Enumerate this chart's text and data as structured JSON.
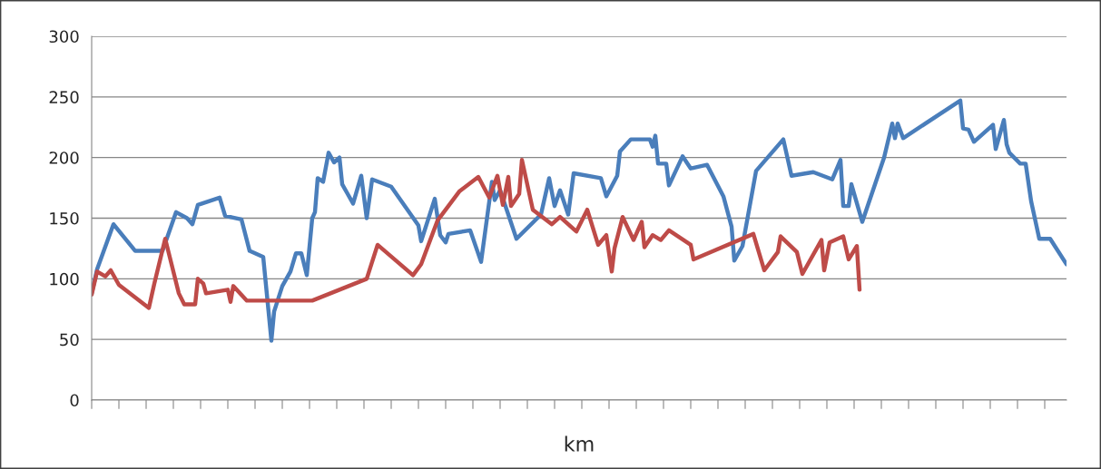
{
  "chart_data": {
    "type": "line",
    "xlabel": "km",
    "categories": [
      null,
      null,
      null,
      null,
      null,
      null,
      null,
      null,
      null,
      null,
      null,
      null,
      null,
      null,
      null,
      null,
      null,
      null,
      null,
      null,
      null,
      null,
      null,
      null,
      null,
      null,
      null,
      null,
      null,
      null,
      null,
      null,
      null,
      null,
      null,
      null,
      null,
      null,
      null,
      null,
      null,
      null,
      null,
      null,
      null,
      null,
      null,
      null,
      null,
      null,
      null,
      null,
      null,
      null,
      null,
      null,
      null,
      null,
      null,
      null,
      null,
      null,
      null,
      null,
      null,
      null,
      null,
      null,
      null,
      null,
      null,
      null,
      null,
      null,
      null,
      null,
      null,
      null,
      null,
      null,
      null,
      null,
      null,
      null,
      null,
      null,
      null,
      null,
      null,
      null,
      null,
      null,
      null,
      null,
      null,
      null,
      null,
      null,
      null,
      null,
      null,
      null,
      null,
      null,
      null,
      null,
      null,
      null,
      null,
      null,
      null,
      null,
      null,
      null,
      null,
      null,
      null,
      null,
      null,
      null,
      null,
      null,
      null,
      null,
      null,
      null,
      null,
      null,
      null,
      null,
      null,
      null,
      null,
      null,
      null,
      null,
      null,
      null,
      null,
      null,
      null,
      null,
      null,
      null,
      null,
      null,
      null,
      null,
      null,
      null,
      null,
      null,
      null,
      null,
      null,
      null,
      null,
      null,
      null,
      null,
      null,
      null,
      null,
      null,
      null,
      null,
      null,
      null,
      null,
      null,
      null,
      null,
      null,
      null,
      null,
      null,
      null,
      null,
      null,
      null,
      null,
      null,
      null,
      null,
      null,
      null,
      null,
      null,
      null,
      null,
      null,
      null,
      null,
      null,
      null,
      null,
      null,
      null,
      null,
      null,
      null,
      null,
      null,
      null,
      null,
      null,
      null,
      null,
      null,
      null,
      null,
      null,
      null,
      null,
      null,
      null,
      null,
      null,
      null,
      null,
      null,
      null,
      null,
      null,
      null,
      null,
      null,
      null,
      null,
      null,
      null,
      null,
      null,
      null,
      null,
      null,
      null,
      null,
      null,
      null,
      null,
      null,
      null,
      null,
      null,
      null,
      null,
      null,
      null,
      null,
      null,
      null,
      null,
      null,
      null,
      null,
      null,
      null,
      null,
      null,
      null,
      null,
      null,
      null,
      null,
      null,
      null,
      null,
      null,
      null,
      null,
      null,
      null,
      null,
      null,
      null,
      null,
      null,
      null,
      null,
      null,
      null,
      null,
      null,
      null,
      null,
      null,
      null,
      null,
      null,
      null,
      null,
      null,
      null,
      null,
      null,
      null,
      null,
      null,
      null,
      null,
      null,
      null,
      null,
      null,
      null,
      null,
      null,
      null,
      null,
      null,
      null,
      null,
      null,
      null,
      null,
      null,
      null,
      null,
      null,
      null,
      null,
      null,
      null,
      null,
      null,
      null,
      null,
      null,
      null,
      null,
      null,
      null,
      null,
      null,
      null,
      null,
      null,
      null,
      null,
      null,
      null,
      null,
      null,
      null,
      null,
      null,
      null,
      null,
      null,
      null,
      null,
      null,
      null,
      null,
      null,
      null,
      null,
      null
    ],
    "series": [
      {
        "color": "#4a7ebb",
        "values": [
          88,
          null,
          108,
          null,
          null,
          null,
          null,
          null,
          145,
          null,
          null,
          null,
          null,
          null,
          null,
          null,
          123,
          null,
          null,
          null,
          null,
          null,
          null,
          null,
          null,
          null,
          123,
          null,
          null,
          null,
          null,
          155,
          null,
          null,
          null,
          150,
          null,
          145,
          null,
          161,
          null,
          null,
          null,
          null,
          null,
          null,
          null,
          167,
          null,
          152,
          null,
          null,
          null,
          null,
          null,
          149,
          null,
          null,
          123,
          null,
          null,
          null,
          null,
          118,
          null,
          null,
          49,
          73,
          null,
          null,
          94,
          null,
          null,
          106,
          null,
          121,
          null,
          121,
          null,
          103,
          null,
          150,
          155,
          183,
          null,
          180,
          null,
          204,
          null,
          196,
          null,
          200,
          178,
          null,
          170,
          null,
          162,
          null,
          null,
          185,
          null,
          150,
          null,
          182,
          null,
          null,
          null,
          null,
          null,
          null,
          176,
          null,
          null,
          null,
          null,
          null,
          null,
          null,
          null,
          null,
          144,
          131,
          null,
          null,
          null,
          null,
          166,
          null,
          136,
          null,
          130,
          137,
          null,
          null,
          null,
          null,
          null,
          null,
          null,
          140,
          null,
          null,
          null,
          114,
          null,
          null,
          null,
          180,
          165,
          null,
          173,
          null,
          null,
          null,
          null,
          null,
          133,
          null,
          null,
          null,
          null,
          null,
          null,
          null,
          null,
          153,
          null,
          null,
          183,
          null,
          160,
          null,
          173,
          null,
          null,
          153,
          null,
          187,
          null,
          null,
          null,
          null,
          null,
          null,
          null,
          null,
          null,
          183,
          null,
          168,
          null,
          null,
          null,
          185,
          205,
          null,
          null,
          null,
          215,
          null,
          null,
          null,
          null,
          null,
          null,
          215,
          209,
          218,
          195,
          null,
          null,
          195,
          177,
          null,
          null,
          null,
          null,
          201,
          null,
          null,
          191,
          null,
          null,
          null,
          null,
          null,
          194,
          null,
          null,
          null,
          null,
          null,
          168,
          null,
          null,
          143,
          115,
          null,
          null,
          127,
          null,
          null,
          null,
          null,
          189,
          null,
          null,
          null,
          null,
          null,
          null,
          null,
          null,
          null,
          215,
          null,
          null,
          185,
          null,
          null,
          null,
          null,
          null,
          null,
          null,
          188,
          null,
          null,
          null,
          null,
          null,
          null,
          182,
          null,
          null,
          198,
          160,
          null,
          160,
          178,
          null,
          null,
          null,
          147,
          null,
          null,
          null,
          null,
          null,
          null,
          null,
          200,
          null,
          null,
          228,
          216,
          228,
          null,
          216,
          null,
          null,
          null,
          null,
          null,
          null,
          null,
          null,
          null,
          null,
          null,
          null,
          null,
          null,
          null,
          null,
          null,
          null,
          null,
          null,
          247,
          224,
          null,
          223,
          null,
          213,
          null,
          null,
          null,
          null,
          null,
          null,
          227,
          207,
          null,
          null,
          231,
          211,
          204,
          null,
          null,
          null,
          195,
          null,
          195,
          null,
          164,
          null,
          null,
          133,
          null,
          null,
          null,
          133,
          null,
          null,
          null,
          null,
          null,
          112
        ]
      },
      {
        "color": "#be4b48",
        "values": [
          87,
          null,
          106,
          null,
          null,
          102,
          null,
          107,
          null,
          null,
          95,
          null,
          null,
          null,
          null,
          null,
          null,
          null,
          null,
          null,
          null,
          76,
          null,
          96,
          null,
          null,
          null,
          133,
          null,
          115,
          null,
          null,
          88,
          null,
          79,
          null,
          null,
          null,
          79,
          100,
          null,
          96,
          88,
          null,
          null,
          null,
          null,
          null,
          null,
          null,
          91,
          81,
          94,
          null,
          null,
          null,
          null,
          82,
          null,
          null,
          null,
          null,
          null,
          null,
          null,
          null,
          null,
          null,
          null,
          null,
          null,
          null,
          null,
          null,
          null,
          null,
          null,
          null,
          null,
          null,
          null,
          82,
          null,
          null,
          null,
          null,
          null,
          null,
          null,
          null,
          null,
          null,
          null,
          null,
          null,
          null,
          null,
          null,
          null,
          null,
          null,
          100,
          null,
          null,
          null,
          128,
          null,
          null,
          null,
          null,
          null,
          null,
          null,
          null,
          null,
          null,
          null,
          null,
          103,
          null,
          null,
          112,
          null,
          null,
          null,
          null,
          null,
          148,
          null,
          null,
          null,
          null,
          null,
          null,
          null,
          172,
          null,
          null,
          null,
          null,
          null,
          null,
          184,
          null,
          null,
          null,
          167,
          null,
          null,
          185,
          null,
          161,
          null,
          184,
          160,
          null,
          null,
          170,
          198,
          null,
          null,
          null,
          157,
          null,
          null,
          null,
          null,
          null,
          null,
          145,
          null,
          null,
          151,
          null,
          null,
          null,
          null,
          null,
          139,
          null,
          null,
          null,
          157,
          null,
          null,
          null,
          128,
          null,
          null,
          136,
          null,
          106,
          125,
          null,
          null,
          151,
          null,
          null,
          null,
          132,
          null,
          null,
          147,
          126,
          null,
          null,
          136,
          null,
          null,
          132,
          null,
          null,
          140,
          null,
          null,
          null,
          null,
          null,
          null,
          null,
          128,
          116,
          null,
          null,
          null,
          null,
          null,
          null,
          null,
          null,
          null,
          null,
          null,
          null,
          null,
          null,
          null,
          null,
          null,
          null,
          null,
          null,
          null,
          137,
          null,
          null,
          null,
          107,
          null,
          null,
          null,
          null,
          122,
          135,
          null,
          null,
          null,
          null,
          null,
          122,
          null,
          104,
          null,
          null,
          null,
          null,
          null,
          null,
          132,
          107,
          null,
          130,
          null,
          null,
          null,
          null,
          135,
          null,
          116,
          null,
          null,
          127,
          91,
          null,
          null,
          null,
          null,
          null,
          null,
          null,
          null,
          null,
          null,
          null,
          null,
          null,
          null,
          null,
          null,
          null,
          null,
          null,
          null,
          null,
          null,
          null,
          null,
          null,
          null,
          null,
          null,
          null,
          null,
          null,
          null,
          null,
          null,
          null,
          null,
          null,
          null,
          null,
          null,
          null,
          null,
          null,
          null,
          null,
          null,
          null,
          null,
          null,
          null,
          null,
          null,
          null,
          null,
          null,
          null,
          null,
          null,
          null,
          null,
          null,
          null,
          null,
          null,
          null,
          null,
          null,
          null,
          null,
          null,
          null,
          null,
          null,
          null,
          null,
          null
        ]
      }
    ],
    "ylim": [
      0,
      300
    ],
    "yticks": [
      0,
      50,
      100,
      150,
      200,
      250,
      300
    ],
    "grid": "y",
    "legend": false
  }
}
